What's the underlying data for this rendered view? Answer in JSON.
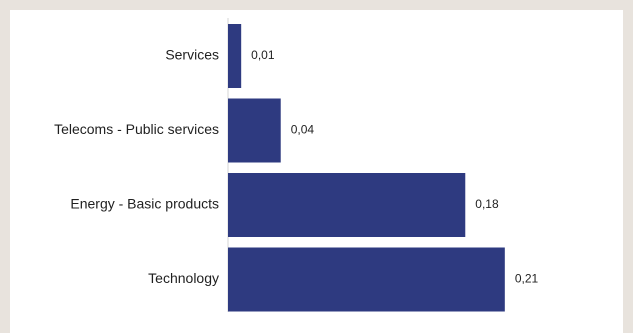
{
  "chart_data": {
    "type": "bar",
    "orientation": "horizontal",
    "categories": [
      "Services",
      "Telecoms - Public services",
      "Energy - Basic products",
      "Technology"
    ],
    "values": [
      0.01,
      0.04,
      0.18,
      0.21
    ],
    "value_labels": [
      "0,01",
      "0,04",
      "0,18",
      "0,21"
    ],
    "bar_color": "#2e3a80",
    "xlim": [
      0,
      0.22
    ],
    "grid": false,
    "legend": "none"
  }
}
